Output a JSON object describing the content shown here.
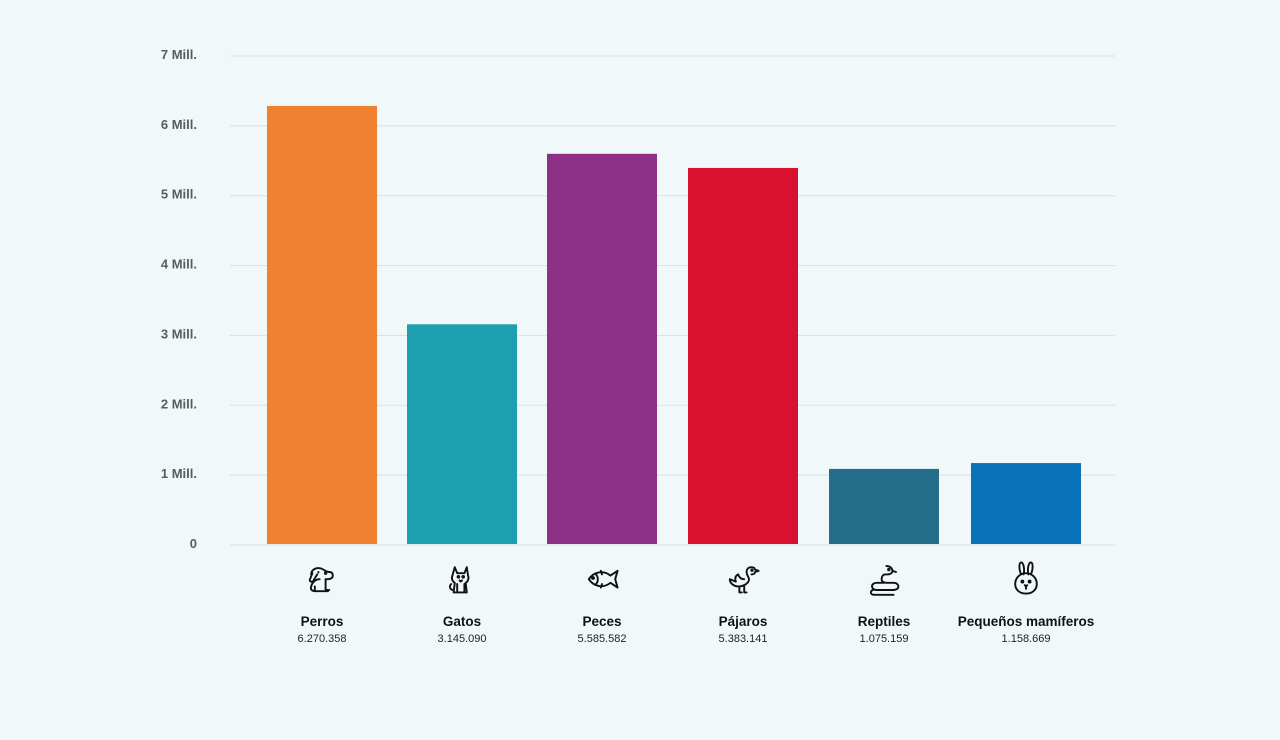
{
  "chart_data": {
    "type": "bar",
    "title": "",
    "xlabel": "",
    "ylabel": "",
    "ylim": [
      0,
      7000000
    ],
    "y_ticks": [
      {
        "value": 0,
        "label": "0"
      },
      {
        "value": 1000000,
        "label": "1 Mill."
      },
      {
        "value": 2000000,
        "label": "2 Mill."
      },
      {
        "value": 3000000,
        "label": "3 Mill."
      },
      {
        "value": 4000000,
        "label": "4 Mill."
      },
      {
        "value": 5000000,
        "label": "5 Mill."
      },
      {
        "value": 6000000,
        "label": "6 Mill."
      },
      {
        "value": 7000000,
        "label": "7 Mill."
      }
    ],
    "grid": true,
    "categories": [
      "Perros",
      "Gatos",
      "Peces",
      "Pájaros",
      "Reptiles",
      "Pequeños mamíferos"
    ],
    "values": [
      6270358,
      3145090,
      5585582,
      5383141,
      1075159,
      1158669
    ],
    "value_labels": [
      "6.270.358",
      "3.145.090",
      "5.585.582",
      "5.383.141",
      "1.075.159",
      "1.158.669"
    ],
    "colors": [
      "#ef8230",
      "#1ca0b0",
      "#8e2f88",
      "#d91030",
      "#246e8c",
      "#0873b8"
    ],
    "icons": [
      "dog-icon",
      "cat-icon",
      "fish-icon",
      "bird-icon",
      "snake-icon",
      "rabbit-icon"
    ]
  }
}
